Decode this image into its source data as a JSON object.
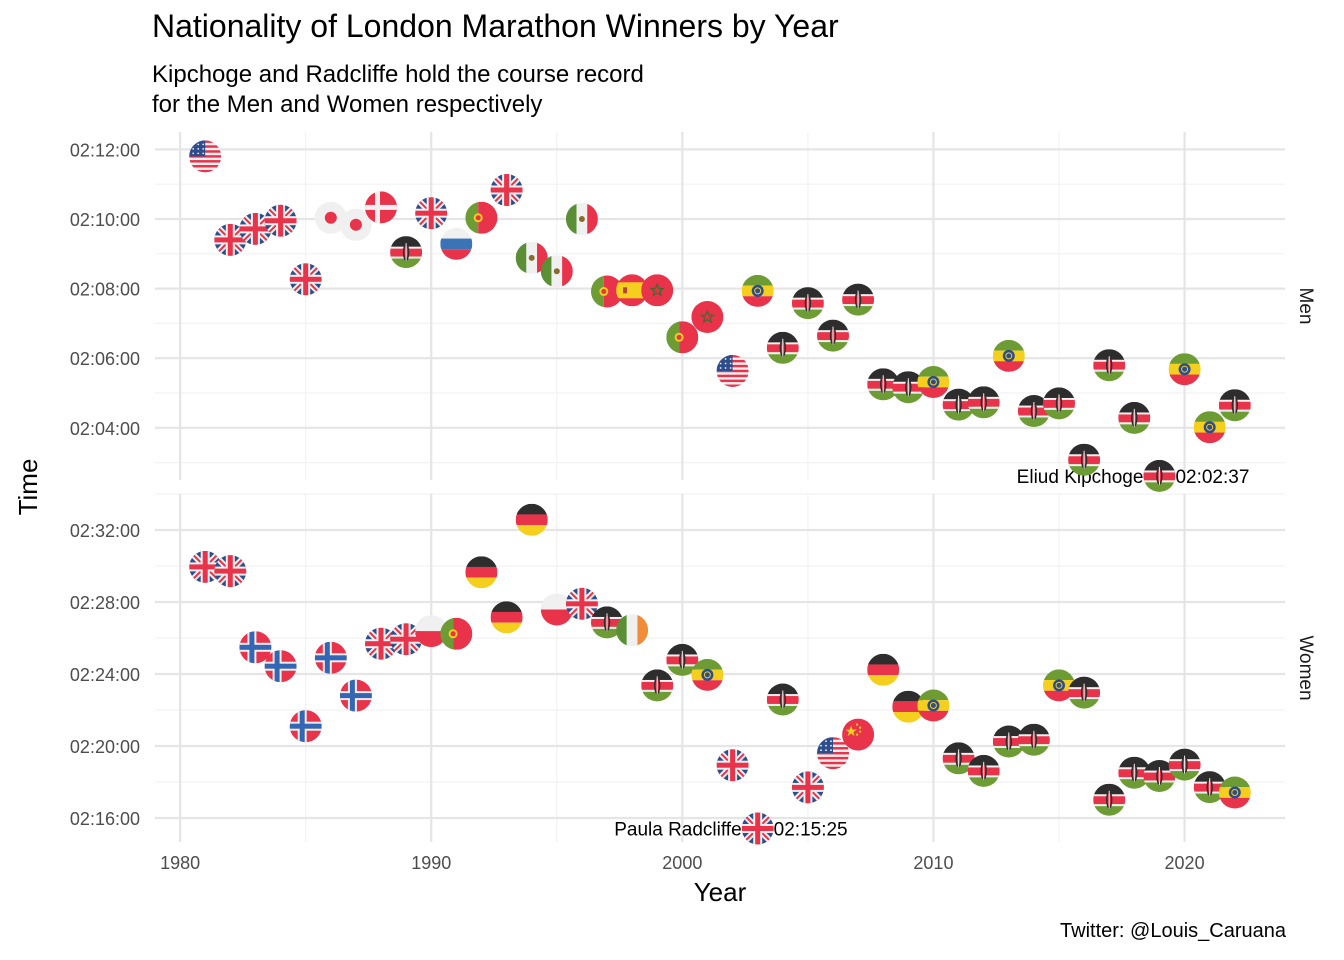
{
  "title": "Nationality of London Marathon Winners by Year",
  "subtitle_lines": [
    "Kipchoge and Radcliffe hold the course record",
    "for the Men and Women respectively"
  ],
  "caption": "Twitter: @Louis_Caruana",
  "colors": {
    "grid_major": "#e5e5e5",
    "grid_minor": "#f2f2f2",
    "text": "#4d4d4d",
    "red": "#e8334a",
    "blue": "#2d4d8c",
    "white": "#f0f0f0",
    "black": "#2d2d2d",
    "green": "#6d9b34",
    "yellow": "#f4cf1e",
    "orange": "#f28c38",
    "mx_green": "#5a8f35"
  },
  "chart_data": {
    "type": "scatter",
    "xlabel": "Year",
    "ylabel": "Time",
    "x_ticks": [
      1980,
      1990,
      2000,
      2010,
      2020
    ],
    "xlim": [
      1979,
      2024
    ],
    "point_marker": "circular national flag",
    "panels": [
      {
        "strip_label": "Men",
        "ylim": [
          "02:02:30",
          "02:12:30"
        ],
        "y_ticks": [
          "02:04:00",
          "02:06:00",
          "02:08:00",
          "02:10:00",
          "02:12:00"
        ],
        "record_label": {
          "name": "Eliud Kipchoge",
          "time": "02:02:37",
          "year": 2019
        },
        "points": [
          {
            "year": 1981,
            "time": "02:11:48",
            "flag": "usa"
          },
          {
            "year": 1982,
            "time": "02:09:24",
            "flag": "gbr"
          },
          {
            "year": 1983,
            "time": "02:09:43",
            "flag": "gbr"
          },
          {
            "year": 1984,
            "time": "02:09:57",
            "flag": "gbr"
          },
          {
            "year": 1985,
            "time": "02:08:16",
            "flag": "gbr"
          },
          {
            "year": 1986,
            "time": "02:10:02",
            "flag": "jpn"
          },
          {
            "year": 1987,
            "time": "02:09:50",
            "flag": "jpn"
          },
          {
            "year": 1988,
            "time": "02:10:20",
            "flag": "den"
          },
          {
            "year": 1989,
            "time": "02:09:03",
            "flag": "ken"
          },
          {
            "year": 1990,
            "time": "02:10:10",
            "flag": "gbr"
          },
          {
            "year": 1991,
            "time": "02:09:17",
            "flag": "rus"
          },
          {
            "year": 1992,
            "time": "02:10:02",
            "flag": "por"
          },
          {
            "year": 1993,
            "time": "02:10:50",
            "flag": "gbr"
          },
          {
            "year": 1994,
            "time": "02:08:53",
            "flag": "mex"
          },
          {
            "year": 1995,
            "time": "02:08:30",
            "flag": "mex"
          },
          {
            "year": 1996,
            "time": "02:10:00",
            "flag": "mex"
          },
          {
            "year": 1997,
            "time": "02:07:55",
            "flag": "por"
          },
          {
            "year": 1998,
            "time": "02:07:57",
            "flag": "esp"
          },
          {
            "year": 1999,
            "time": "02:07:57",
            "flag": "mar"
          },
          {
            "year": 2000,
            "time": "02:06:36",
            "flag": "por"
          },
          {
            "year": 2001,
            "time": "02:07:11",
            "flag": "mar"
          },
          {
            "year": 2002,
            "time": "02:05:38",
            "flag": "usa"
          },
          {
            "year": 2003,
            "time": "02:07:56",
            "flag": "eth"
          },
          {
            "year": 2004,
            "time": "02:06:18",
            "flag": "ken"
          },
          {
            "year": 2005,
            "time": "02:07:35",
            "flag": "ken"
          },
          {
            "year": 2006,
            "time": "02:06:39",
            "flag": "ken"
          },
          {
            "year": 2007,
            "time": "02:07:41",
            "flag": "ken"
          },
          {
            "year": 2008,
            "time": "02:05:15",
            "flag": "ken"
          },
          {
            "year": 2009,
            "time": "02:05:10",
            "flag": "ken"
          },
          {
            "year": 2010,
            "time": "02:05:19",
            "flag": "eth"
          },
          {
            "year": 2011,
            "time": "02:04:40",
            "flag": "ken"
          },
          {
            "year": 2012,
            "time": "02:04:44",
            "flag": "ken"
          },
          {
            "year": 2013,
            "time": "02:06:04",
            "flag": "eth"
          },
          {
            "year": 2014,
            "time": "02:04:29",
            "flag": "ken"
          },
          {
            "year": 2015,
            "time": "02:04:42",
            "flag": "ken"
          },
          {
            "year": 2016,
            "time": "02:03:05",
            "flag": "ken"
          },
          {
            "year": 2017,
            "time": "02:05:48",
            "flag": "ken"
          },
          {
            "year": 2018,
            "time": "02:04:17",
            "flag": "ken"
          },
          {
            "year": 2019,
            "time": "02:02:37",
            "flag": "ken"
          },
          {
            "year": 2020,
            "time": "02:05:41",
            "flag": "eth"
          },
          {
            "year": 2021,
            "time": "02:04:01",
            "flag": "eth"
          },
          {
            "year": 2022,
            "time": "02:04:39",
            "flag": "ken"
          }
        ]
      },
      {
        "strip_label": "Women",
        "ylim": [
          "02:14:40",
          "02:34:00"
        ],
        "y_ticks": [
          "02:16:00",
          "02:20:00",
          "02:24:00",
          "02:28:00",
          "02:32:00"
        ],
        "record_label": {
          "name": "Paula Radcliffe",
          "time": "02:15:25",
          "year": 2003
        },
        "points": [
          {
            "year": 1981,
            "time": "02:29:57",
            "flag": "gbr"
          },
          {
            "year": 1982,
            "time": "02:29:43",
            "flag": "gbr"
          },
          {
            "year": 1983,
            "time": "02:25:29",
            "flag": "nor"
          },
          {
            "year": 1984,
            "time": "02:24:26",
            "flag": "nor"
          },
          {
            "year": 1985,
            "time": "02:21:06",
            "flag": "nor"
          },
          {
            "year": 1986,
            "time": "02:24:54",
            "flag": "nor"
          },
          {
            "year": 1987,
            "time": "02:22:48",
            "flag": "nor"
          },
          {
            "year": 1988,
            "time": "02:25:41",
            "flag": "gbr"
          },
          {
            "year": 1989,
            "time": "02:25:56",
            "flag": "gbr"
          },
          {
            "year": 1990,
            "time": "02:26:23",
            "flag": "pol"
          },
          {
            "year": 1991,
            "time": "02:26:14",
            "flag": "por"
          },
          {
            "year": 1992,
            "time": "02:29:39",
            "flag": "ger"
          },
          {
            "year": 1993,
            "time": "02:27:09",
            "flag": "ger"
          },
          {
            "year": 1994,
            "time": "02:32:34",
            "flag": "ger"
          },
          {
            "year": 1995,
            "time": "02:27:35",
            "flag": "pol"
          },
          {
            "year": 1996,
            "time": "02:27:54",
            "flag": "gbr"
          },
          {
            "year": 1997,
            "time": "02:26:52",
            "flag": "ken"
          },
          {
            "year": 1998,
            "time": "02:26:26",
            "flag": "irl"
          },
          {
            "year": 1999,
            "time": "02:23:22",
            "flag": "ken"
          },
          {
            "year": 2000,
            "time": "02:24:47",
            "flag": "ken"
          },
          {
            "year": 2001,
            "time": "02:23:57",
            "flag": "eth"
          },
          {
            "year": 2002,
            "time": "02:18:56",
            "flag": "gbr"
          },
          {
            "year": 2003,
            "time": "02:15:25",
            "flag": "gbr"
          },
          {
            "year": 2004,
            "time": "02:22:35",
            "flag": "ken"
          },
          {
            "year": 2005,
            "time": "02:17:42",
            "flag": "gbr"
          },
          {
            "year": 2006,
            "time": "02:19:36",
            "flag": "usa"
          },
          {
            "year": 2007,
            "time": "02:20:38",
            "flag": "chn"
          },
          {
            "year": 2008,
            "time": "02:24:14",
            "flag": "ger"
          },
          {
            "year": 2009,
            "time": "02:22:11",
            "flag": "ger"
          },
          {
            "year": 2010,
            "time": "02:22:15",
            "flag": "eth"
          },
          {
            "year": 2011,
            "time": "02:19:19",
            "flag": "ken"
          },
          {
            "year": 2012,
            "time": "02:18:37",
            "flag": "ken"
          },
          {
            "year": 2013,
            "time": "02:20:15",
            "flag": "ken"
          },
          {
            "year": 2014,
            "time": "02:20:21",
            "flag": "ken"
          },
          {
            "year": 2015,
            "time": "02:23:22",
            "flag": "eth"
          },
          {
            "year": 2016,
            "time": "02:22:58",
            "flag": "ken"
          },
          {
            "year": 2017,
            "time": "02:17:01",
            "flag": "ken"
          },
          {
            "year": 2018,
            "time": "02:18:31",
            "flag": "ken"
          },
          {
            "year": 2019,
            "time": "02:18:20",
            "flag": "ken"
          },
          {
            "year": 2020,
            "time": "02:18:58",
            "flag": "ken"
          },
          {
            "year": 2021,
            "time": "02:17:43",
            "flag": "ken"
          },
          {
            "year": 2022,
            "time": "02:17:25",
            "flag": "eth"
          }
        ]
      }
    ]
  }
}
